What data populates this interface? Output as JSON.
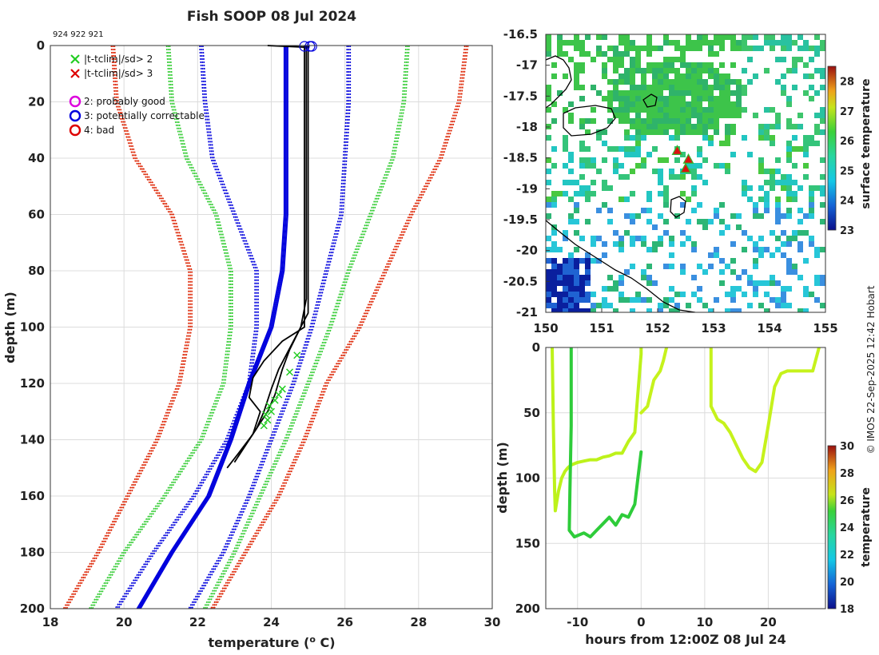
{
  "title": "Fish SOOP 08 Jul 2024",
  "ids_text": "924 922 921",
  "copyright": "© IMOS 22-Sep-2025 12:42 Hobart",
  "chart_data": [
    {
      "type": "line",
      "name": "temperature-profile",
      "xlabel": "temperature (",
      "xlabel_sup": "o",
      "xlabel_end": " C)",
      "ylabel": "depth (m)",
      "xlim": [
        18,
        30
      ],
      "ylim": [
        0,
        200
      ],
      "xticks": [
        "18",
        "20",
        "22",
        "24",
        "26",
        "28",
        "30"
      ],
      "yticks": [
        "0",
        "20",
        "40",
        "60",
        "80",
        "100",
        "120",
        "140",
        "160",
        "180",
        "200"
      ],
      "legend": [
        {
          "symbol": "x",
          "color": "#22cc22",
          "label": "|t-tclim|/sd> 2"
        },
        {
          "symbol": "x",
          "color": "#dd0000",
          "label": "|t-tclim|/sd> 3"
        },
        {
          "symbol": "o",
          "color": "#dd00dd",
          "label": "2: probably good"
        },
        {
          "symbol": "o",
          "color": "#0000dd",
          "label": "3: potentially correctable"
        },
        {
          "symbol": "o",
          "color": "#dd0000",
          "label": "4: bad"
        }
      ],
      "series": [
        {
          "name": "red-left",
          "color": "#dd2200",
          "style": "dotted",
          "points": [
            [
              19.7,
              0
            ],
            [
              19.8,
              20
            ],
            [
              20.3,
              40
            ],
            [
              21.3,
              60
            ],
            [
              21.8,
              80
            ],
            [
              21.8,
              100
            ],
            [
              21.5,
              120
            ],
            [
              20.9,
              140
            ],
            [
              20.1,
              160
            ],
            [
              19.3,
              180
            ],
            [
              18.4,
              200
            ]
          ]
        },
        {
          "name": "green-left",
          "color": "#33cc33",
          "style": "dotted",
          "points": [
            [
              21.2,
              0
            ],
            [
              21.3,
              20
            ],
            [
              21.7,
              40
            ],
            [
              22.5,
              60
            ],
            [
              22.9,
              80
            ],
            [
              22.9,
              100
            ],
            [
              22.7,
              120
            ],
            [
              22.1,
              140
            ],
            [
              21.1,
              160
            ],
            [
              20.0,
              180
            ],
            [
              19.1,
              200
            ]
          ]
        },
        {
          "name": "blue-left",
          "color": "#0000dd",
          "style": "dotted",
          "points": [
            [
              22.1,
              0
            ],
            [
              22.2,
              20
            ],
            [
              22.4,
              40
            ],
            [
              23.0,
              60
            ],
            [
              23.6,
              80
            ],
            [
              23.6,
              100
            ],
            [
              23.4,
              120
            ],
            [
              22.8,
              140
            ],
            [
              21.9,
              160
            ],
            [
              20.8,
              180
            ],
            [
              19.8,
              200
            ]
          ]
        },
        {
          "name": "blue-right",
          "color": "#0000dd",
          "style": "dotted",
          "points": [
            [
              26.1,
              0
            ],
            [
              26.1,
              20
            ],
            [
              26.0,
              40
            ],
            [
              25.9,
              60
            ],
            [
              25.5,
              80
            ],
            [
              25.1,
              100
            ],
            [
              24.6,
              120
            ],
            [
              24.0,
              140
            ],
            [
              23.4,
              160
            ],
            [
              22.7,
              180
            ],
            [
              21.8,
              200
            ]
          ]
        },
        {
          "name": "green-right",
          "color": "#33cc33",
          "style": "dotted",
          "points": [
            [
              27.7,
              0
            ],
            [
              27.6,
              20
            ],
            [
              27.3,
              40
            ],
            [
              26.7,
              60
            ],
            [
              26.1,
              80
            ],
            [
              25.6,
              100
            ],
            [
              25.0,
              120
            ],
            [
              24.4,
              140
            ],
            [
              23.7,
              160
            ],
            [
              23.0,
              180
            ],
            [
              22.2,
              200
            ]
          ]
        },
        {
          "name": "red-right",
          "color": "#dd2200",
          "style": "dotted",
          "points": [
            [
              29.3,
              0
            ],
            [
              29.1,
              20
            ],
            [
              28.6,
              40
            ],
            [
              27.8,
              60
            ],
            [
              27.1,
              80
            ],
            [
              26.4,
              100
            ],
            [
              25.5,
              120
            ],
            [
              24.9,
              140
            ],
            [
              24.2,
              160
            ],
            [
              23.3,
              180
            ],
            [
              22.4,
              200
            ]
          ]
        },
        {
          "name": "blue-solid",
          "color": "#0000dd",
          "style": "solid",
          "points": [
            [
              24.4,
              0
            ],
            [
              24.4,
              20
            ],
            [
              24.4,
              40
            ],
            [
              24.4,
              60
            ],
            [
              24.3,
              80
            ],
            [
              24.0,
              100
            ],
            [
              23.4,
              120
            ],
            [
              22.9,
              140
            ],
            [
              22.3,
              160
            ],
            [
              21.3,
              180
            ],
            [
              20.4,
              200
            ]
          ]
        },
        {
          "name": "obs-a",
          "color": "#000000",
          "style": "solid",
          "points": [
            [
              24.9,
              0
            ],
            [
              24.9,
              20
            ],
            [
              24.9,
              40
            ],
            [
              24.9,
              60
            ],
            [
              24.9,
              80
            ],
            [
              24.9,
              100
            ],
            [
              24.3,
              105
            ],
            [
              23.8,
              112
            ],
            [
              23.5,
              118
            ],
            [
              23.4,
              125
            ],
            [
              23.7,
              130
            ],
            [
              23.5,
              138
            ],
            [
              23.1,
              145
            ],
            [
              22.8,
              150
            ]
          ]
        },
        {
          "name": "obs-b",
          "color": "#000000",
          "style": "solid",
          "points": [
            [
              25.0,
              0
            ],
            [
              25.0,
              20
            ],
            [
              25.0,
              40
            ],
            [
              25.0,
              60
            ],
            [
              25.0,
              80
            ],
            [
              25.0,
              95
            ],
            [
              24.6,
              105
            ],
            [
              24.2,
              115
            ],
            [
              24.0,
              122
            ],
            [
              23.8,
              130
            ],
            [
              23.6,
              136
            ],
            [
              23.3,
              142
            ],
            [
              23.0,
              148
            ]
          ]
        },
        {
          "name": "obs-c",
          "color": "#000000",
          "style": "solid",
          "points": [
            [
              24.95,
              0
            ],
            [
              24.95,
              30
            ],
            [
              24.95,
              60
            ],
            [
              24.95,
              90
            ],
            [
              24.8,
              100
            ],
            [
              24.5,
              108
            ],
            [
              24.3,
              115
            ],
            [
              24.1,
              124
            ],
            [
              23.9,
              130
            ],
            [
              23.4,
              140
            ],
            [
              23.1,
              146
            ]
          ]
        }
      ]
    },
    {
      "type": "heatmap",
      "name": "surface-temperature-map",
      "xlim": [
        150,
        155
      ],
      "ylim": [
        -21,
        -16.5
      ],
      "xticks": [
        "150",
        "151",
        "152",
        "153",
        "154",
        "155"
      ],
      "yticks": [
        "-16.5",
        "-17",
        "-17.5",
        "-18",
        "-18.5",
        "-19",
        "-19.5",
        "-20",
        "-20.5",
        "-21"
      ],
      "colorbar_label": "surface temperature",
      "colorbar_range": [
        23,
        28.5
      ],
      "colorbar_ticks": [
        "23",
        "24",
        "25",
        "26",
        "27",
        "28"
      ],
      "markers": [
        [
          152.35,
          -18.38
        ],
        [
          152.55,
          -18.52
        ],
        [
          152.5,
          -18.67
        ]
      ]
    },
    {
      "type": "line",
      "name": "depth-time-section",
      "xlabel": "hours from 12:00Z 08 Jul 24",
      "ylabel": "depth (m)",
      "xlim": [
        -15,
        29
      ],
      "ylim": [
        0,
        200
      ],
      "xticks": [
        "-10",
        "0",
        "10",
        "20"
      ],
      "yticks": [
        "0",
        "50",
        "100",
        "150",
        "200"
      ],
      "colorbar_label": "temperature",
      "colorbar_range": [
        18,
        30
      ],
      "colorbar_ticks": [
        "18",
        "20",
        "22",
        "24",
        "26",
        "28",
        "30"
      ],
      "series": [
        {
          "name": "drop-1",
          "color": "#bdf21a",
          "points": [
            [
              -14,
              0
            ],
            [
              -13.8,
              60
            ],
            [
              -13.6,
              110
            ],
            [
              -13.5,
              125
            ],
            [
              -13,
              110
            ],
            [
              -12.5,
              100
            ],
            [
              -12,
              95
            ],
            [
              -11.5,
              92
            ],
            [
              -11,
              90
            ],
            [
              -10,
              88
            ],
            [
              -9,
              87
            ],
            [
              -8,
              86
            ],
            [
              -7,
              86
            ],
            [
              -6,
              84
            ],
            [
              -5,
              83
            ],
            [
              -4,
              81
            ],
            [
              -3,
              81
            ],
            [
              -2,
              72
            ],
            [
              -1,
              65
            ],
            [
              -0.5,
              35
            ],
            [
              0,
              5
            ],
            [
              0,
              0
            ]
          ]
        },
        {
          "name": "drop-2",
          "color": "#2ecc3a",
          "points": [
            [
              -11,
              0
            ],
            [
              -11,
              60
            ],
            [
              -11.2,
              110
            ],
            [
              -11.3,
              140
            ],
            [
              -10.5,
              145
            ],
            [
              -9,
              142
            ],
            [
              -8,
              145
            ],
            [
              -7,
              140
            ],
            [
              -6,
              135
            ],
            [
              -5,
              130
            ],
            [
              -4,
              136
            ],
            [
              -3,
              128
            ],
            [
              -2,
              130
            ],
            [
              -1,
              120
            ],
            [
              -0.5,
              100
            ],
            [
              0,
              80
            ]
          ]
        },
        {
          "name": "drop-3",
          "color": "#c6f21c",
          "points": [
            [
              0,
              50
            ],
            [
              1,
              45
            ],
            [
              2,
              25
            ],
            [
              3,
              18
            ],
            [
              3.5,
              10
            ],
            [
              4,
              0
            ]
          ]
        },
        {
          "name": "drop-4",
          "color": "#c6f21c",
          "points": [
            [
              11,
              0
            ],
            [
              11,
              45
            ],
            [
              12,
              55
            ],
            [
              13,
              58
            ],
            [
              14,
              65
            ],
            [
              15,
              75
            ],
            [
              16,
              85
            ],
            [
              17,
              92
            ],
            [
              18,
              95
            ],
            [
              19,
              88
            ],
            [
              20,
              60
            ],
            [
              21,
              30
            ],
            [
              22,
              20
            ],
            [
              23,
              18
            ],
            [
              25,
              18
            ],
            [
              27,
              18
            ],
            [
              28,
              0
            ]
          ]
        }
      ]
    }
  ]
}
